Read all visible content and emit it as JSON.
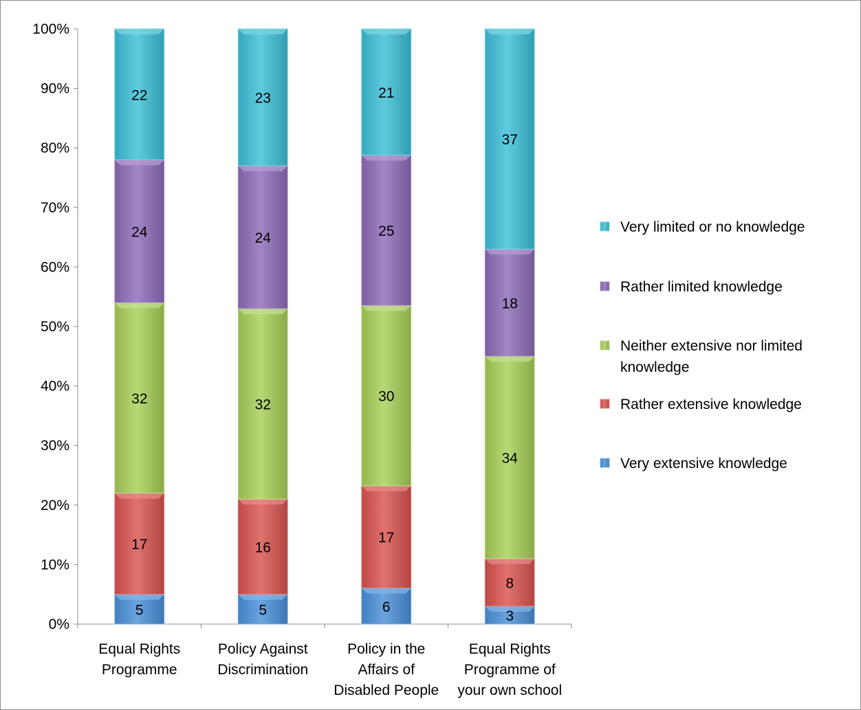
{
  "chart_data": {
    "type": "bar",
    "stacked": true,
    "percent_stacked": true,
    "title": "",
    "xlabel": "",
    "ylabel": "",
    "ylim": [
      0,
      100
    ],
    "y_ticks": [
      "0%",
      "10%",
      "20%",
      "30%",
      "40%",
      "50%",
      "60%",
      "70%",
      "80%",
      "90%",
      "100%"
    ],
    "grid": false,
    "legend_position": "right",
    "categories": [
      [
        "Equal Rights",
        "Programme"
      ],
      [
        "Policy Against",
        "Discrimination"
      ],
      [
        "Policy in the",
        "Affairs of",
        "Disabled People"
      ],
      [
        "Equal Rights",
        "Programme of",
        "your own school"
      ]
    ],
    "series": [
      {
        "name": "Very extensive knowledge",
        "color": "#4a90d9",
        "values": [
          5,
          5,
          6,
          3
        ]
      },
      {
        "name": "Rather extensive knowledge",
        "color": "#d9534f",
        "values": [
          17,
          16,
          17,
          8
        ]
      },
      {
        "name": "Neither extensive nor limited knowledge",
        "legend_lines": [
          "Neither extensive nor limited",
          "knowledge"
        ],
        "color": "#a8cf58",
        "values": [
          32,
          32,
          30,
          34
        ]
      },
      {
        "name": "Rather limited knowledge",
        "color": "#8e6bb8",
        "values": [
          24,
          24,
          25,
          18
        ]
      },
      {
        "name": "Very limited or no knowledge",
        "color": "#3cbfd8",
        "values": [
          22,
          23,
          21,
          37
        ]
      }
    ]
  }
}
